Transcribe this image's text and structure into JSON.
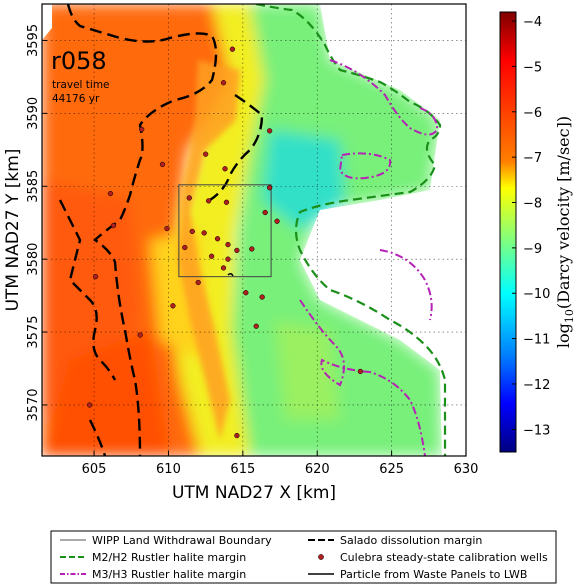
{
  "chart_data": {
    "type": "heatmap",
    "title": "r058",
    "subtitle_lines": [
      "travel time",
      "44176 yr"
    ],
    "xlabel": "UTM NAD27 X [km]",
    "ylabel": "UTM NAD27 Y [km]",
    "xlim": [
      601.5,
      630
    ],
    "ylim": [
      3566.5,
      3597.5
    ],
    "x_ticks": [
      605,
      610,
      615,
      620,
      625,
      630
    ],
    "y_ticks": [
      3570,
      3575,
      3580,
      3585,
      3590,
      3595
    ],
    "grid": true,
    "colorbar": {
      "label": "log10(Darcy velocity [m/sec])",
      "label_prefix": "log",
      "label_sub": "10",
      "label_rest": "(Darcy velocity [m/sec])",
      "min": -13.5,
      "max": -3.8,
      "ticks": [
        -4,
        -5,
        -6,
        -7,
        -8,
        -9,
        -10,
        -11,
        -12,
        -13
      ],
      "colormap": [
        "#00007f",
        "#0000ff",
        "#007fff",
        "#00ffff",
        "#7fff7f",
        "#ffff00",
        "#ff7f00",
        "#ff0000",
        "#7f0000"
      ]
    },
    "wipp_boundary": {
      "x0": 610.7,
      "x1": 616.9,
      "y0": 3578.8,
      "y1": 3585.1
    },
    "wells": [
      [
        614.3,
        3594.4
      ],
      [
        613.7,
        3592.1
      ],
      [
        616.8,
        3588.8
      ],
      [
        608.2,
        3588.9
      ],
      [
        609.6,
        3586.5
      ],
      [
        612.5,
        3587.2
      ],
      [
        613.8,
        3586.2
      ],
      [
        606.1,
        3584.5
      ],
      [
        611.4,
        3584.2
      ],
      [
        612.7,
        3584.0
      ],
      [
        613.9,
        3583.9
      ],
      [
        616.8,
        3584.9
      ],
      [
        617.3,
        3582.6
      ],
      [
        606.3,
        3582.3
      ],
      [
        609.9,
        3582.1
      ],
      [
        611.6,
        3581.9
      ],
      [
        612.4,
        3581.8
      ],
      [
        613.3,
        3581.4
      ],
      [
        614.0,
        3581.0
      ],
      [
        614.6,
        3580.6
      ],
      [
        611.1,
        3580.8
      ],
      [
        612.9,
        3580.2
      ],
      [
        614.0,
        3580.0
      ],
      [
        615.6,
        3580.7
      ],
      [
        613.7,
        3579.4
      ],
      [
        612.0,
        3578.4
      ],
      [
        605.1,
        3578.8
      ],
      [
        610.3,
        3576.8
      ],
      [
        615.2,
        3577.7
      ],
      [
        616.3,
        3577.4
      ],
      [
        615.9,
        3575.4
      ],
      [
        608.1,
        3574.8
      ],
      [
        604.7,
        3570.0
      ],
      [
        614.6,
        3567.9
      ],
      [
        622.9,
        3572.3
      ],
      [
        616.5,
        3583.2
      ]
    ],
    "legend": {
      "col1": [
        {
          "label": "WIPP Land Withdrawal Boundary",
          "style": "thin-solid",
          "color": "#555555"
        },
        {
          "label": "M2/H2 Rustler halite margin",
          "style": "dashed",
          "color": "#1a8f1a"
        },
        {
          "label": "M3/H3 Rustler halite margin",
          "style": "dash-dot",
          "color": "#b522b5"
        }
      ],
      "col2": [
        {
          "label": "Salado dissolution margin",
          "style": "dashed-bold",
          "color": "#000000"
        },
        {
          "label": "Culebra steady-state calibration wells",
          "style": "marker",
          "color": "#b01e1e"
        },
        {
          "label": "Particle from Waste Panels to LWB",
          "style": "solid",
          "color": "#000000"
        }
      ]
    }
  }
}
